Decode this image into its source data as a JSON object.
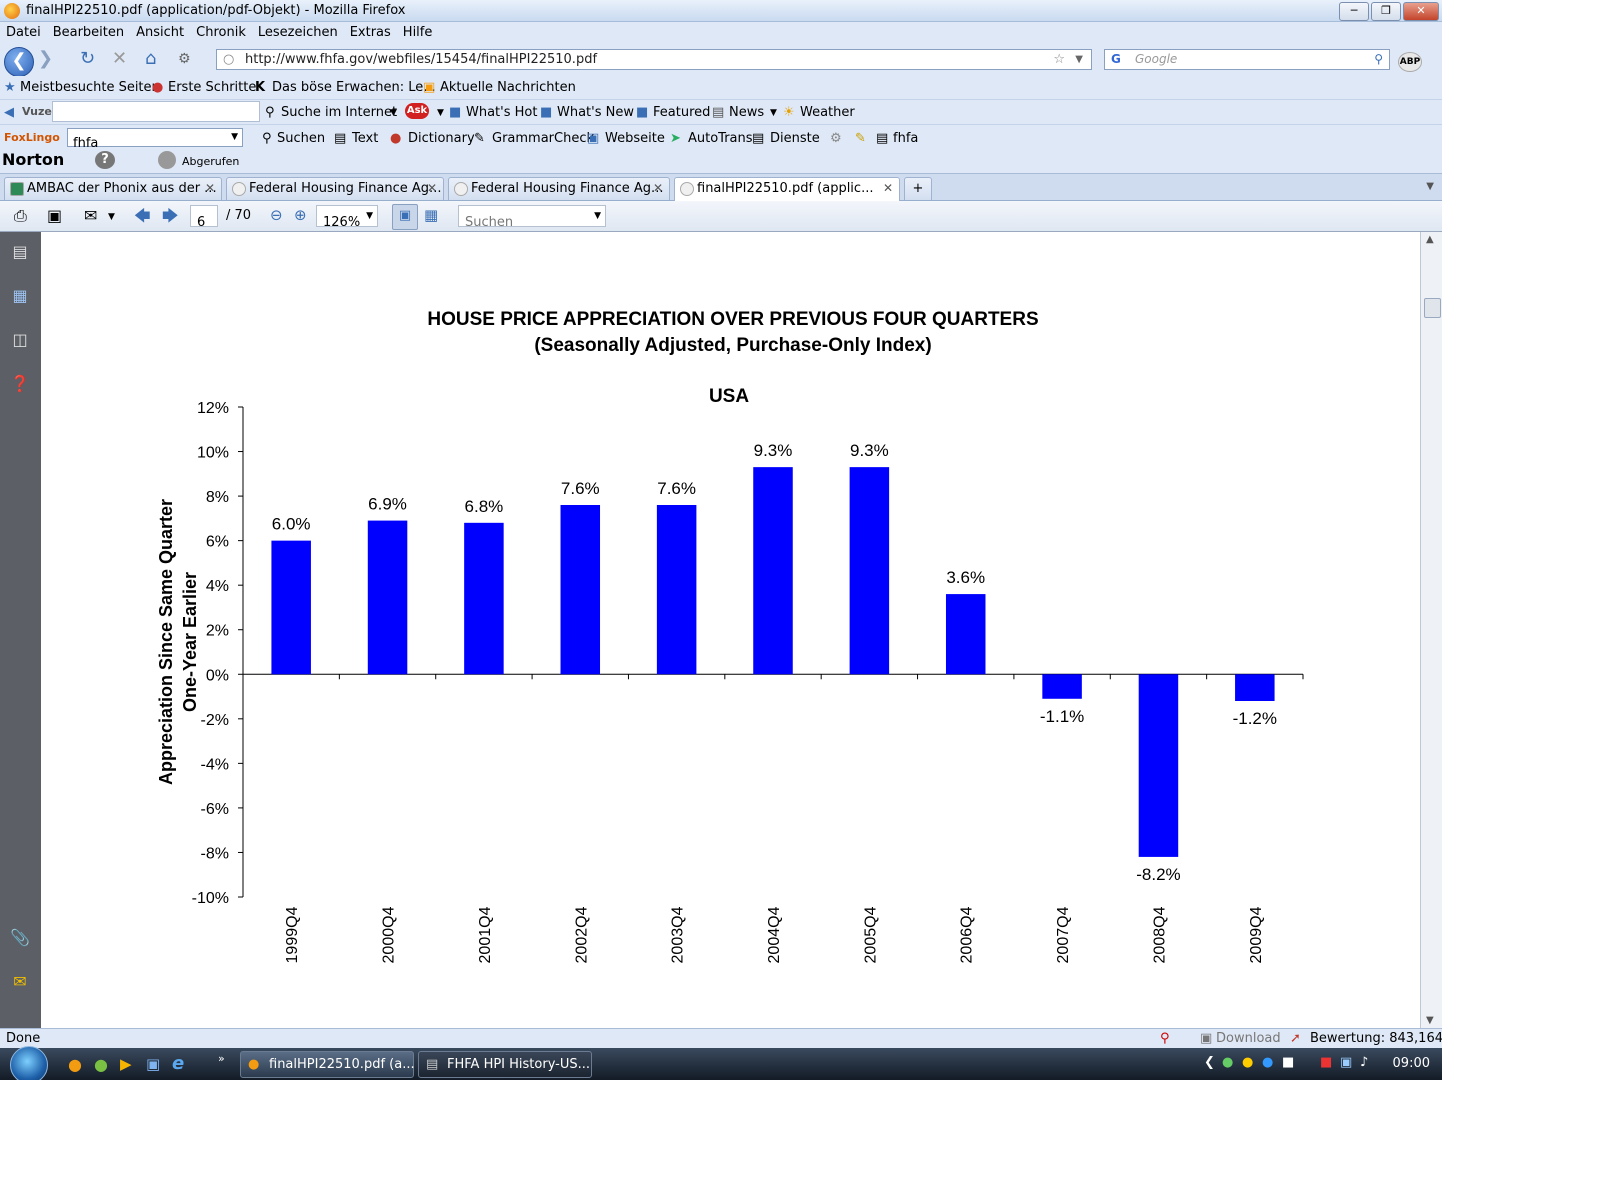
{
  "window": {
    "title": "finalHPI22510.pdf (application/pdf-Objekt) - Mozilla Firefox"
  },
  "menu": [
    "Datei",
    "Bearbeiten",
    "Ansicht",
    "Chronik",
    "Lesezeichen",
    "Extras",
    "Hilfe"
  ],
  "nav": {
    "url": "http://www.fhfa.gov/webfiles/15454/finalHPI22510.pdf",
    "search_placeholder": "Google",
    "abp": "ABP"
  },
  "bookmarks": [
    "Meistbesuchte Seiten",
    "Erste Schritte",
    "Das böse Erwachen: Le...",
    "Aktuelle Nachrichten"
  ],
  "vuze": {
    "label": "Vuze",
    "search": "Suche im Internet",
    "ask": "Ask",
    "whats_hot": "What's Hot",
    "whats_new": "What's New",
    "featured": "Featured",
    "news": "News",
    "weather": "Weather"
  },
  "foxlingo": {
    "label": "FoxLingo",
    "query": "fhfa",
    "suchen": "Suchen",
    "text": "Text",
    "dictionary": "Dictionary",
    "grammar": "GrammarCheck",
    "webseite": "Webseite",
    "autotrans": "AutoTrans",
    "dienste": "Dienste",
    "fhfa": "fhfa"
  },
  "norton": {
    "label": "Norton",
    "help": "?",
    "abgerufen": "Abgerufen"
  },
  "tabs": [
    {
      "label": "AMBAC der Phonix aus der ..."
    },
    {
      "label": "Federal Housing Finance Ag..."
    },
    {
      "label": "Federal Housing Finance Ag..."
    },
    {
      "label": "finalHPI22510.pdf (applic..."
    }
  ],
  "pdf_toolbar": {
    "page": "6",
    "total": "/ 70",
    "zoom": "126%",
    "search_placeholder": "Suchen"
  },
  "status": {
    "text": "Done",
    "download": "Download",
    "rating": "Bewertung: 843,164"
  },
  "taskbar": {
    "item1": "finalHPI22510.pdf (a...",
    "item2": "FHFA HPI History-US...",
    "clock": "09:00"
  },
  "chart_data": {
    "type": "bar",
    "title": "HOUSE PRICE APPRECIATION OVER PREVIOUS FOUR QUARTERS",
    "subtitle": "(Seasonally Adjusted, Purchase-Only Index)",
    "region": "USA",
    "ylabel_line1": "Appreciation Since Same Quarter",
    "ylabel_line2": "One-Year Earlier",
    "ylim": [
      -10,
      12
    ],
    "yticks": [
      12,
      10,
      8,
      6,
      4,
      2,
      0,
      -2,
      -4,
      -6,
      -8,
      -10
    ],
    "ytick_labels": [
      "12%",
      "10%",
      "8%",
      "6%",
      "4%",
      "2%",
      "0%",
      "-2%",
      "-4%",
      "-6%",
      "-8%",
      "-10%"
    ],
    "categories": [
      "1999Q4",
      "2000Q4",
      "2001Q4",
      "2002Q4",
      "2003Q4",
      "2004Q4",
      "2005Q4",
      "2006Q4",
      "2007Q4",
      "2008Q4",
      "2009Q4"
    ],
    "values": [
      6.0,
      6.9,
      6.8,
      7.6,
      7.6,
      9.3,
      9.3,
      3.6,
      -1.1,
      -8.2,
      -1.2
    ],
    "value_labels": [
      "6.0%",
      "6.9%",
      "6.8%",
      "7.6%",
      "7.6%",
      "9.3%",
      "9.3%",
      "3.6%",
      "-1.1%",
      "-8.2%",
      "-1.2%"
    ],
    "bar_color": "#0000ff"
  }
}
